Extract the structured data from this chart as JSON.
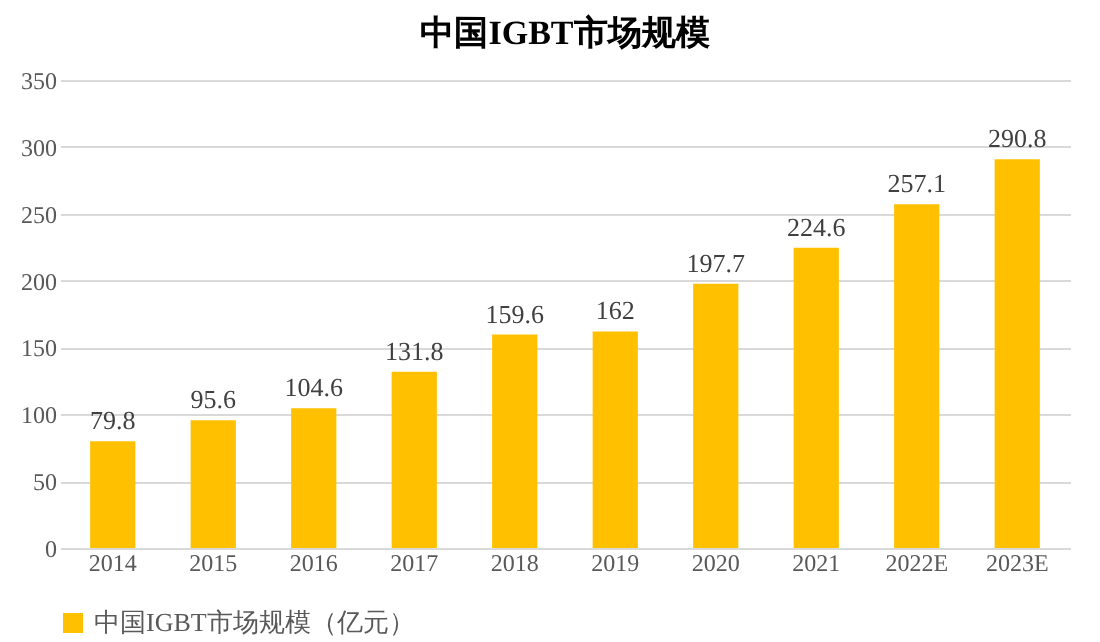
{
  "chart_data": {
    "type": "bar",
    "title": "中国IGBT市场规模",
    "categories": [
      "2014",
      "2015",
      "2016",
      "2017",
      "2018",
      "2019",
      "2020",
      "2021",
      "2022E",
      "2023E"
    ],
    "series": [
      {
        "name": "中国IGBT市场规模（亿元）",
        "color": "#ffc000",
        "values": [
          79.8,
          95.6,
          104.6,
          131.8,
          159.6,
          162,
          197.7,
          224.6,
          257.1,
          290.8
        ]
      }
    ],
    "ylim": [
      0,
      350
    ],
    "yticks": [
      0,
      50,
      100,
      150,
      200,
      250,
      300,
      350
    ],
    "grid": "y",
    "legend": "bottom",
    "data_labels": true
  }
}
